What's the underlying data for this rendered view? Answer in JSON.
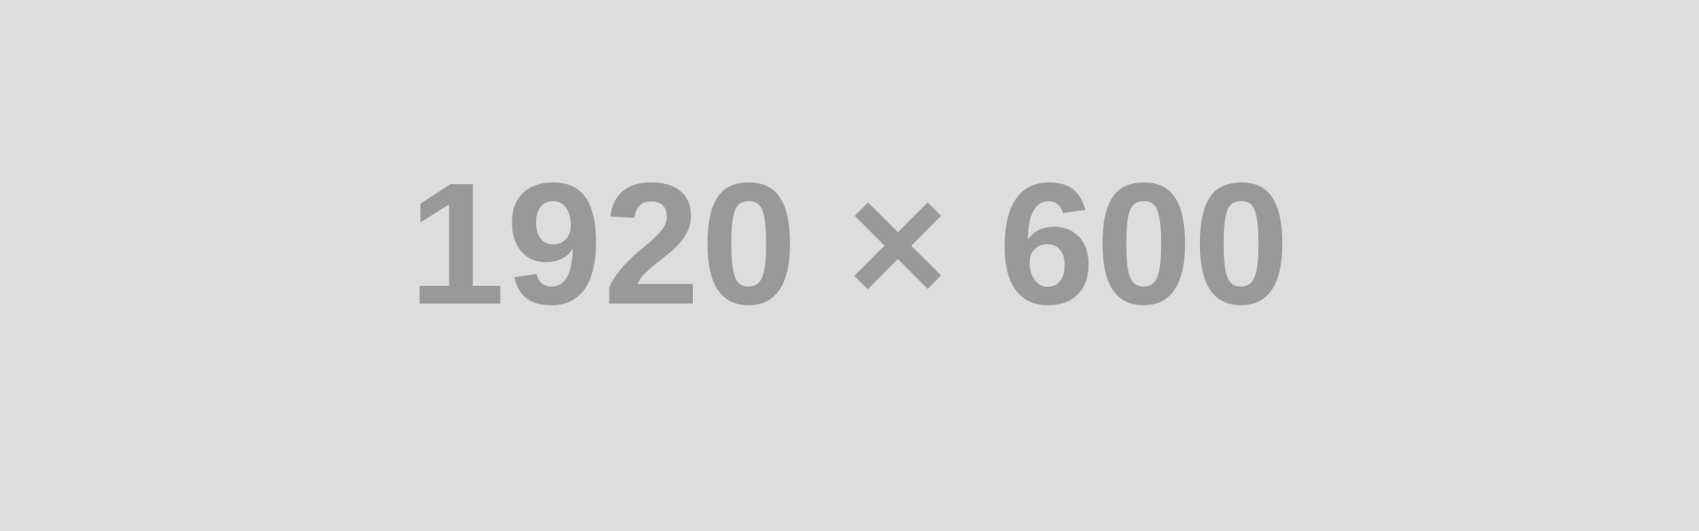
{
  "placeholder": {
    "label": "1920 × 600",
    "background_color": "#dddddd",
    "text_color": "#999999"
  }
}
